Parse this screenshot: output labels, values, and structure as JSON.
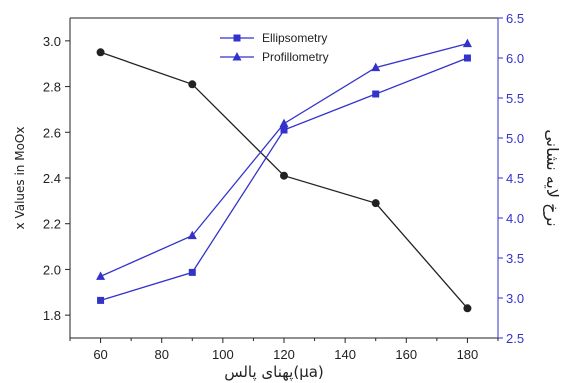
{
  "chart_data": {
    "type": "line",
    "x": [
      60,
      90,
      120,
      150,
      180
    ],
    "xlabel": "پهنای پالس(µa)",
    "xlim": [
      50,
      190
    ],
    "xticks": [
      60,
      80,
      100,
      120,
      140,
      160,
      180
    ],
    "left_axis": {
      "label": "x Values in MoOx",
      "ylim": [
        1.7,
        3.1
      ],
      "ticks": [
        "1.8",
        "2.0",
        "2.2",
        "2.4",
        "2.6",
        "2.8",
        "3.0"
      ],
      "color": "#222222"
    },
    "right_axis": {
      "label": "نرخ لایه نشانی",
      "ylim": [
        2.5,
        6.5
      ],
      "ticks": [
        "2.5",
        "3.0",
        "3.5",
        "4.0",
        "4.5",
        "5.0",
        "5.5",
        "6.0",
        "6.5"
      ],
      "color": "#3333cc"
    },
    "series": [
      {
        "axis": "left",
        "marker": "circle",
        "color": "#222222",
        "values": [
          2.95,
          2.81,
          2.41,
          2.29,
          1.83
        ]
      },
      {
        "name": "Ellipsometry",
        "axis": "right",
        "marker": "square",
        "color": "#3333cc",
        "values": [
          2.97,
          3.32,
          5.1,
          5.55,
          6.0
        ]
      },
      {
        "name": "Profillometry",
        "axis": "right",
        "marker": "triangle",
        "color": "#3333cc",
        "values": [
          3.27,
          3.78,
          5.18,
          5.88,
          6.18
        ]
      }
    ],
    "legend": {
      "position": "top-center"
    }
  }
}
